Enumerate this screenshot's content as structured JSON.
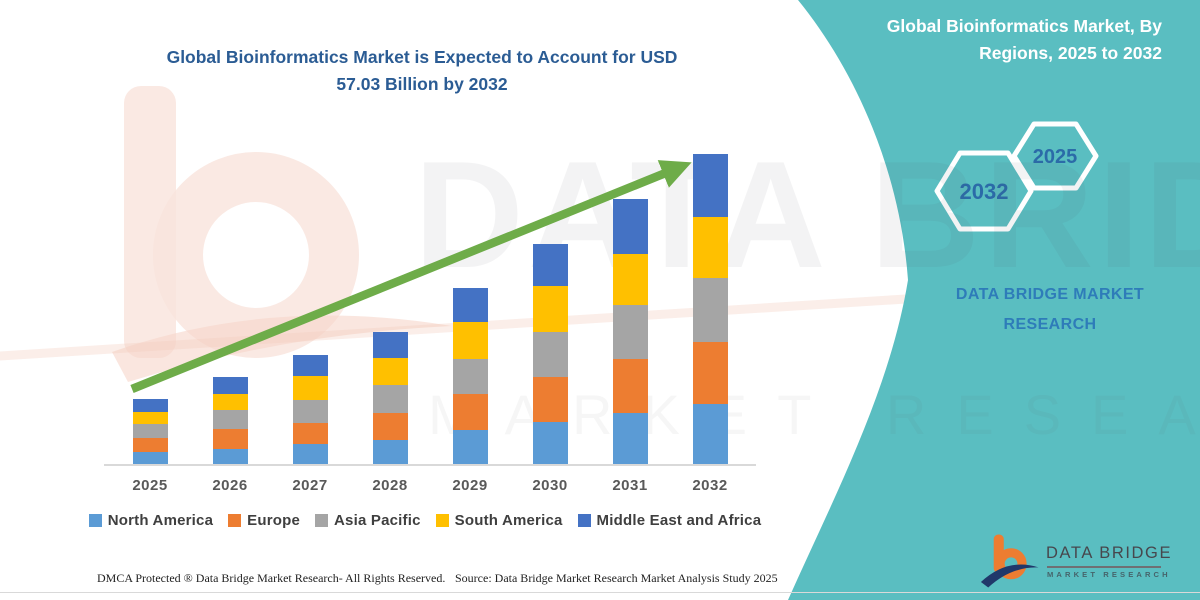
{
  "title": {
    "line1": "Global Bioinformatics Market  is Expected to Account for USD",
    "line2": "57.03 Billion by 2032"
  },
  "watermark": {
    "brand": "DATA BRIDGE",
    "sub": "MARKET RESEARCH"
  },
  "side_panel": {
    "panel_color": "#5abec1",
    "heading_line1": "Global Bioinformatics Market, By",
    "heading_line2": "Regions, 2025 to 2032",
    "hexagon_large": "2032",
    "hexagon_small": "2025",
    "brand_line1": "DATA BRIDGE MARKET",
    "brand_line2": "RESEARCH"
  },
  "logo": {
    "brand": "DATA BRIDGE",
    "sub": "MARKET RESEARCH"
  },
  "footer": {
    "dmca": "DMCA Protected ® Data Bridge Market Research-  All Rights Reserved.",
    "source": "Source: Data Bridge Market Research  Market Analysis Study 2025"
  },
  "chart_data": {
    "type": "bar",
    "stacked": true,
    "title": "Global Bioinformatics Market is Expected to Account for USD 57.03 Billion by 2032",
    "unit": "USD Billion",
    "categories": [
      "2025",
      "2026",
      "2027",
      "2028",
      "2029",
      "2030",
      "2031",
      "2032"
    ],
    "series": [
      {
        "name": "North America",
        "color": "#5b9bd5",
        "values": [
          2.4,
          2.9,
          3.8,
          4.5,
          6.5,
          7.9,
          9.6,
          11.2
        ]
      },
      {
        "name": "Europe",
        "color": "#ed7d31",
        "values": [
          2.5,
          3.7,
          4.0,
          5.1,
          6.6,
          8.2,
          9.8,
          11.4
        ]
      },
      {
        "name": "Asia Pacific",
        "color": "#a5a5a5",
        "values": [
          2.7,
          3.4,
          4.2,
          5.0,
          6.4,
          8.2,
          10.0,
          11.7
        ]
      },
      {
        "name": "South America",
        "color": "#ffc000",
        "values": [
          2.1,
          3.1,
          4.3,
          5.0,
          6.7,
          8.4,
          9.3,
          11.2
        ]
      },
      {
        "name": "Middle East and Africa",
        "color": "#4472c4",
        "values": [
          2.3,
          3.0,
          3.9,
          4.8,
          6.3,
          7.8,
          10.1,
          11.53
        ]
      }
    ],
    "totals": [
      12.0,
      16.1,
      20.2,
      24.4,
      32.5,
      40.5,
      48.8,
      57.03
    ],
    "ylim": [
      0,
      60
    ],
    "grid": false,
    "legend_position": "bottom",
    "annotation": "green upward trend arrow from 2025 bar to 2032 bar",
    "arrow_color": "#6eac49"
  }
}
